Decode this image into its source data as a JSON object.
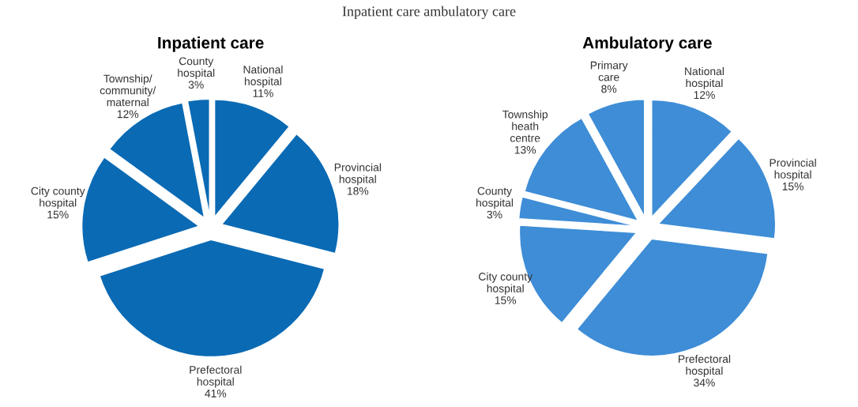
{
  "chart_data": [
    {
      "type": "pie",
      "title": "Inpatient care",
      "annotations": [
        "Inpatient care ambulatory care"
      ],
      "categories": [
        "National\nhospital",
        "Provincial\nhospital",
        "Prefectoral\nhospital",
        "City county\nhospital",
        "Township/\ncommunity/\nmaternal",
        "County\nhospital"
      ],
      "values": [
        11,
        18,
        41,
        15,
        12,
        3
      ],
      "value_labels": [
        "11%",
        "18%",
        "41%",
        "15%",
        "12%",
        "3%"
      ],
      "colors": [
        "#0a6ab4",
        "#0a6ab4",
        "#0a6ab4",
        "#0a6ab4",
        "#0a6ab4",
        "#0a6ab4"
      ]
    },
    {
      "type": "pie",
      "title": "Ambulatory care",
      "categories": [
        "National\nhospital",
        "Provincial\nhospital",
        "Prefectoral\nhospital",
        "City county\nhospital",
        "County\nhospital",
        "Township\nheath\ncentre",
        "Primary\ncare"
      ],
      "values": [
        12,
        15,
        34,
        15,
        3,
        13,
        8
      ],
      "value_labels": [
        "12%",
        "15%",
        "34%",
        "15%",
        "3%",
        "13%",
        "8%"
      ],
      "colors": [
        "#3e8dd6",
        "#3e8dd6",
        "#3e8dd6",
        "#3e8dd6",
        "#3e8dd6",
        "#3e8dd6",
        "#3e8dd6"
      ]
    }
  ]
}
